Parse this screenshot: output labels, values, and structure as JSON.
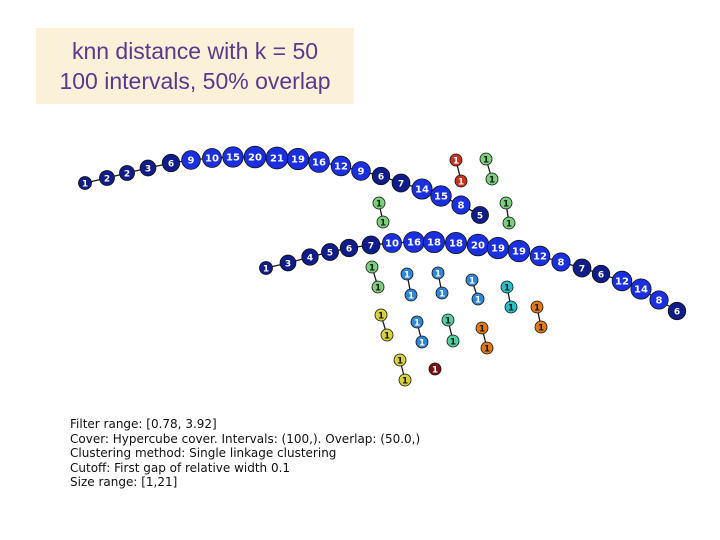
{
  "title": {
    "line1": "knn distance with k = 50",
    "line2": "100 intervals, 50% overlap"
  },
  "colors": {
    "title_bg": "#fbf1d9",
    "title_text": "#5a3890",
    "node_blue": "#1a2fe0",
    "node_dark_blue": "#101c8a",
    "node_red": "#c8321e",
    "node_dark_red": "#7a1010",
    "node_green": "#7ad07a",
    "node_light_blue": "#2f86d6",
    "node_cyan": "#27c0c8",
    "node_teal": "#4fd0a0",
    "node_orange": "#e07a18",
    "node_yellow": "#d8d23c",
    "edge": "#1a1a1a"
  },
  "graph": {
    "upper_chain": [
      "1",
      "2",
      "2",
      "3",
      "6",
      "9",
      "10",
      "15",
      "20",
      "21",
      "19",
      "16",
      "12",
      "9",
      "6",
      "7",
      "14",
      "15",
      "8",
      "5"
    ],
    "lower_chain": [
      "1",
      "3",
      "4",
      "5",
      "6",
      "7",
      "10",
      "16",
      "18",
      "18",
      "20",
      "19",
      "19",
      "12",
      "8",
      "7",
      "6",
      "12",
      "14",
      "8",
      "6"
    ],
    "small_nodes": [
      "1",
      "1",
      "1",
      "1",
      "1",
      "1",
      "1",
      "1",
      "1",
      "1",
      "1",
      "1",
      "1",
      "1",
      "1",
      "1",
      "1",
      "1",
      "1",
      "1",
      "1",
      "1",
      "1",
      "1",
      "1",
      "1",
      "1",
      "1",
      "1",
      "1",
      "1",
      "1",
      "1",
      "1",
      "1"
    ]
  },
  "info": {
    "filter": "Filter range: [0.78, 3.92]",
    "cover": "Cover: Hypercube cover. Intervals: (100,). Overlap: (50.0,)",
    "clustering": "Clustering method: Single linkage clustering",
    "cutoff": "Cutoff: First gap of relative width 0.1",
    "size": "Size range: [1,21]"
  }
}
